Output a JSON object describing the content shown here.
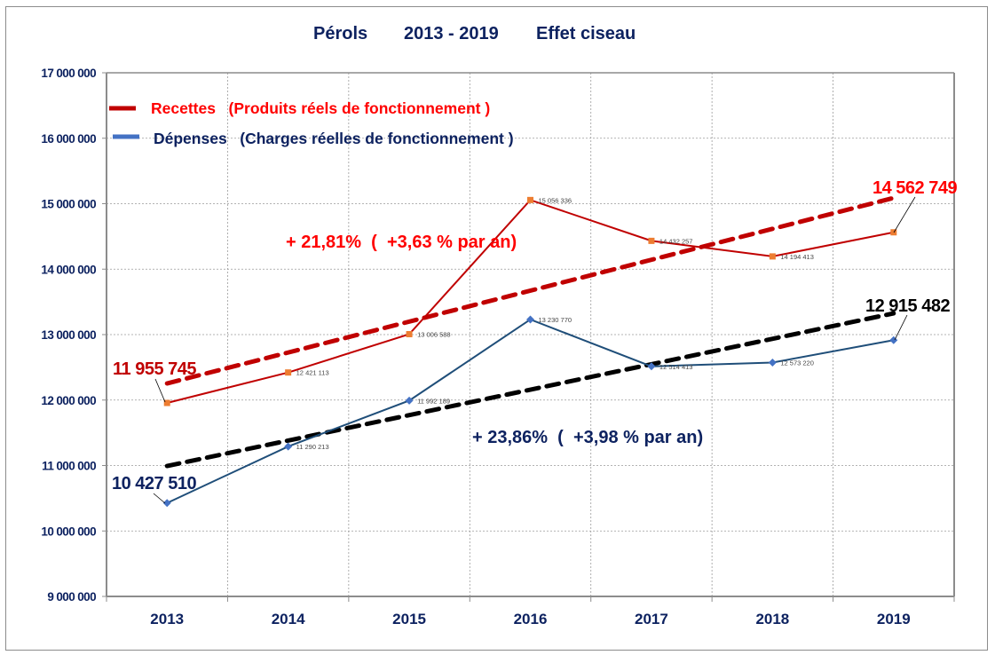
{
  "chart_data": {
    "type": "line",
    "title": "Pérols     2013 - 2019     Effet ciseau",
    "title_parts": [
      "Pérols",
      "2013 - 2019",
      "Effet ciseau"
    ],
    "xlabel": "",
    "ylabel": "",
    "categories": [
      "2013",
      "2014",
      "2015",
      "2016",
      "2017",
      "2018",
      "2019"
    ],
    "ylim": [
      9000000,
      17000000
    ],
    "yticks": [
      9000000,
      10000000,
      11000000,
      12000000,
      13000000,
      14000000,
      15000000,
      16000000,
      17000000
    ],
    "ytick_labels": [
      "9 000 000",
      "10 000 000",
      "11 000 000",
      "12 000 000",
      "13 000 000",
      "14 000 000",
      "15 000 000",
      "16 000 000",
      "17 000 000"
    ],
    "grid": true,
    "legend_position": "top-left",
    "series": [
      {
        "name": "Recettes",
        "legend_label": "Recettes   (Produits réels de fonctionnement )",
        "line_color": "#c00000",
        "marker_color": "#ed7d31",
        "marker": "square",
        "values": [
          11955745,
          12421113,
          13006588,
          15056336,
          14432257,
          14194413,
          14562749
        ],
        "value_labels": [
          "11 955 745",
          "12 421 113",
          "13 006 588",
          "15 056 336",
          "14 432 257",
          "14 194 413",
          "14 562 749"
        ],
        "trendline": {
          "color": "#c00000",
          "start": 12254000,
          "end": 15088000
        }
      },
      {
        "name": "Dépenses",
        "legend_label": "Dépenses   (Charges réelles de fonctionnement )",
        "line_color": "#1f4e79",
        "marker_color": "#4472c4",
        "legend_color": "#4472c4",
        "marker": "diamond",
        "values": [
          10427510,
          11290213,
          11992189,
          13230770,
          12514413,
          12573220,
          12915482
        ],
        "value_labels": [
          "10 427 510",
          "11 290 213",
          "11 992 189",
          "13 230 770",
          "12 514 413",
          "12 573 220",
          "12 915 482"
        ],
        "trendline": {
          "color": "#000000",
          "start": 10993000,
          "end": 13325000
        }
      }
    ],
    "annotations": {
      "recettes_first": "11 955 745",
      "recettes_last": "14 562 749",
      "depenses_first": "10 427 510",
      "depenses_last": "12 915 482",
      "recettes_growth": "+ 21,81%  (  +3,63 % par an)",
      "depenses_growth": "+ 23,86%  (  +3,98 % par an)"
    }
  }
}
